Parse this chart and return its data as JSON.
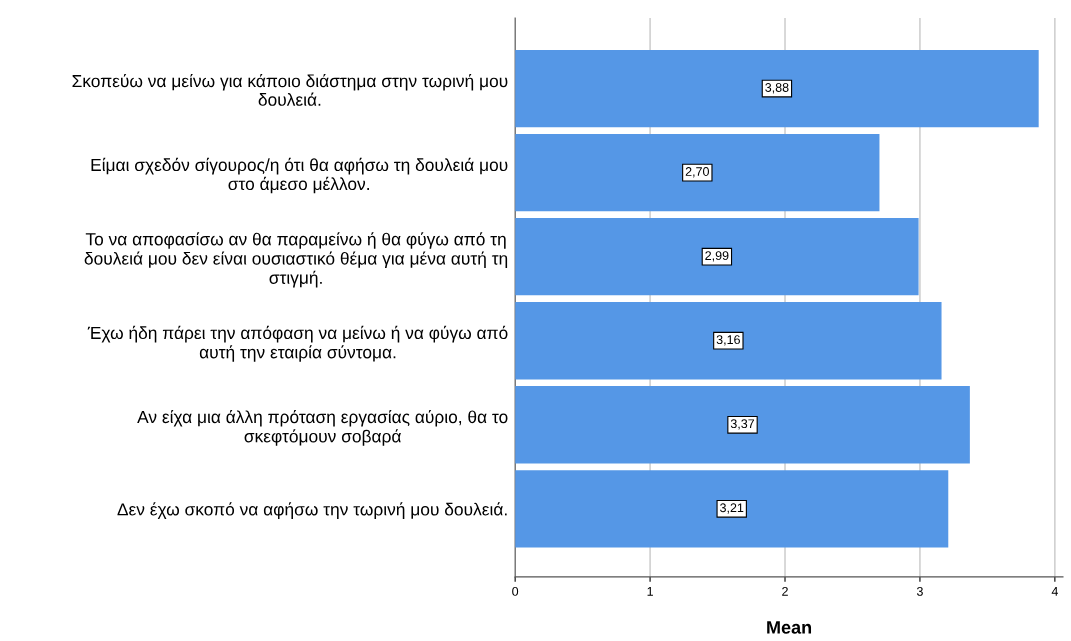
{
  "chart_data": {
    "type": "bar",
    "orientation": "horizontal",
    "xlabel": "Mean",
    "categories": [
      "Σκοπεύω να μείνω για κάποιο διάστημα στην τωρινή μου\nδουλειά.",
      "Είμαι σχεδόν σίγουρος/η ότι θα αφήσω τη δουλειά μου\nστο άμεσο μέλλον.",
      "Το να αποφασίσω αν θα παραμείνω ή θα φύγω από τη\nδουλειά μου δεν είναι ουσιαστικό θέμα για μένα αυτή τη\nστιγμή.",
      "Έχω ήδη πάρει την απόφαση να μείνω ή να φύγω από\nαυτή την εταιρία σύντομα.",
      "Αν είχα μια άλλη πρόταση εργασίας αύριο, θα το\nσκεφτόμουν σοβαρά",
      "Δεν έχω σκοπό να αφήσω την τωρινή μου δουλειά."
    ],
    "values": [
      3.88,
      2.7,
      2.99,
      3.16,
      3.37,
      3.21
    ],
    "value_labels": [
      "3,88",
      "2,70",
      "2,99",
      "3,16",
      "3,37",
      "3,21"
    ],
    "color": "#5597e6",
    "xlim": [
      0,
      4.06
    ],
    "xticks": [
      0,
      1,
      2,
      3,
      4
    ],
    "grid": "x"
  }
}
